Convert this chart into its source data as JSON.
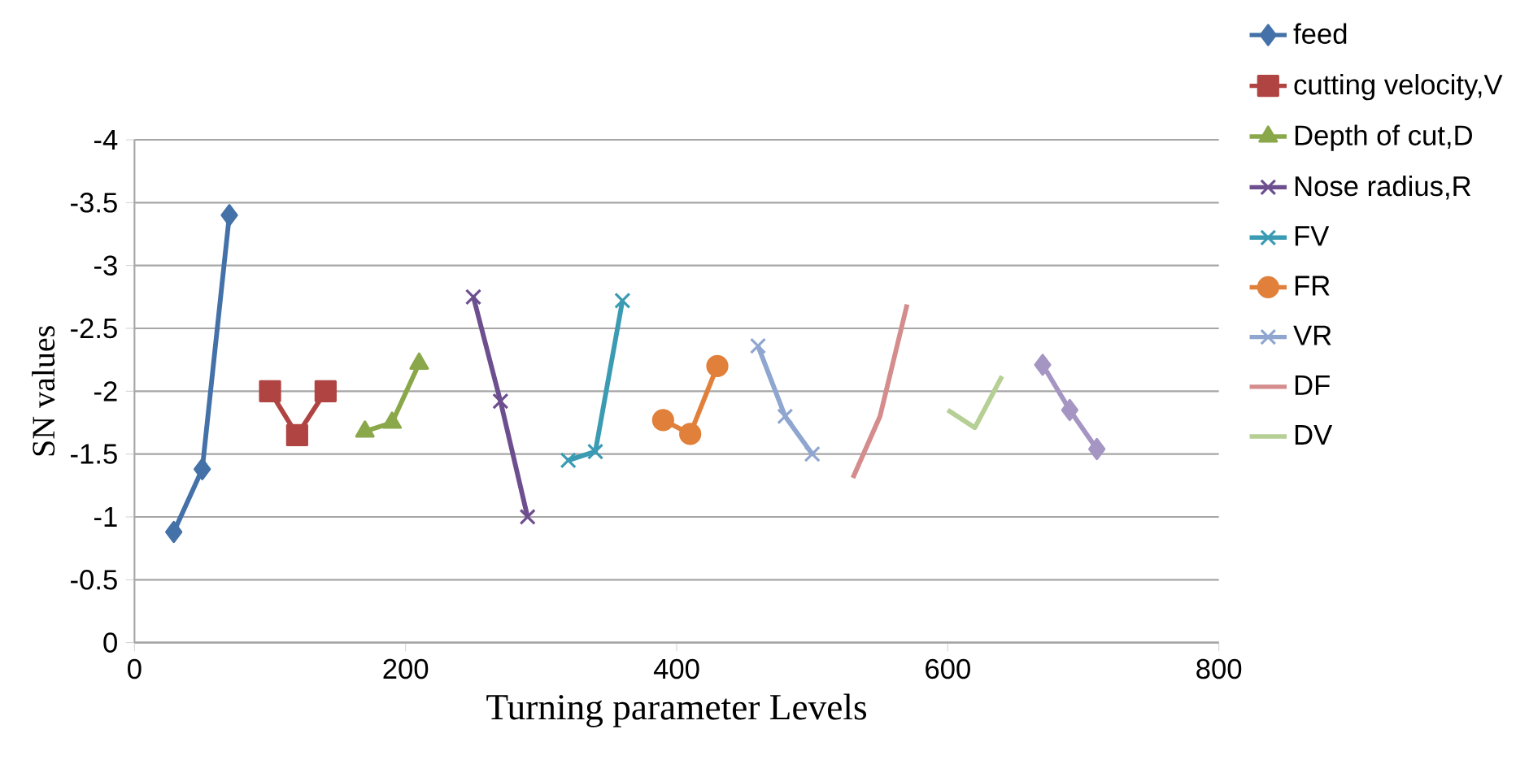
{
  "chart_data": {
    "type": "line",
    "xlabel": "Turning parameter Levels",
    "ylabel": "SN values",
    "xlim": [
      0,
      800
    ],
    "xticks": [
      0,
      200,
      400,
      600,
      800
    ],
    "ylim": [
      0,
      -4
    ],
    "yticks": [
      0,
      -0.5,
      -1,
      -1.5,
      -2,
      -2.5,
      -3,
      -3.5,
      -4
    ],
    "grid": "y",
    "legend": "right",
    "series": [
      {
        "name": "feed",
        "color": "#4472a8",
        "marker": "diamond",
        "x": [
          29,
          50,
          70
        ],
        "values": [
          -0.88,
          -1.38,
          -3.4
        ]
      },
      {
        "name": "cutting velocity,V",
        "color": "#b04442",
        "marker": "square",
        "x": [
          100,
          120,
          141
        ],
        "values": [
          -2.0,
          -1.65,
          -2.0
        ]
      },
      {
        "name": "Depth of cut,D",
        "color": "#8aa84a",
        "marker": "triangle",
        "x": [
          170,
          190,
          210
        ],
        "values": [
          -1.68,
          -1.75,
          -2.22
        ]
      },
      {
        "name": "Nose radius,R",
        "color": "#6d4f8f",
        "marker": "cross",
        "x": [
          250,
          270,
          290
        ],
        "values": [
          -2.75,
          -1.92,
          -1.0
        ]
      },
      {
        "name": "FV",
        "color": "#3b9bb3",
        "marker": "cross",
        "x": [
          320,
          340,
          360
        ],
        "values": [
          -1.45,
          -1.52,
          -2.72
        ]
      },
      {
        "name": "FR",
        "color": "#e0803a",
        "marker": "circle",
        "x": [
          390,
          410,
          430
        ],
        "values": [
          -1.77,
          -1.66,
          -2.2
        ]
      },
      {
        "name": "VR",
        "color": "#8ea6d0",
        "marker": "cross",
        "x": [
          460,
          480,
          500
        ],
        "values": [
          -2.36,
          -1.8,
          -1.5
        ]
      },
      {
        "name": "DF",
        "color": "#d48c8c",
        "marker": "none",
        "x": [
          530,
          550,
          570
        ],
        "values": [
          -1.31,
          -1.8,
          -2.69
        ]
      },
      {
        "name": "DV",
        "color": "#b5cf94",
        "marker": "none",
        "x": [
          600,
          620,
          640
        ],
        "values": [
          -1.85,
          -1.71,
          -2.12
        ]
      },
      {
        "color": "#a595c3",
        "marker": "diamond",
        "x": [
          670,
          690,
          710
        ],
        "values": [
          -2.21,
          -1.85,
          -1.54
        ]
      }
    ]
  }
}
